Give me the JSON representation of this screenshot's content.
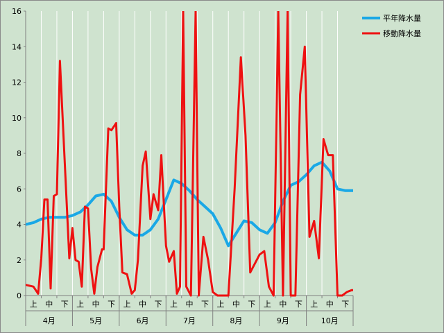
{
  "chart_data": {
    "type": "line",
    "title": "",
    "xlabel": "",
    "ylabel": "",
    "ylim": [
      0,
      16
    ],
    "yticks": [
      0,
      2,
      4,
      6,
      8,
      10,
      12,
      14,
      16
    ],
    "grid": "vertical",
    "legend_position": "top-right",
    "months": [
      "4月",
      "5月",
      "6月",
      "7月",
      "8月",
      "9月",
      "10月"
    ],
    "periods": [
      "上",
      "中",
      "下"
    ],
    "series": [
      {
        "name": "平年降水量",
        "color": "#1aa8e6",
        "x": [
          0.0,
          0.5,
          1.0,
          1.5,
          2.0,
          2.5,
          3.0,
          3.5,
          4.0,
          4.5,
          5.0,
          5.5,
          6.0,
          6.5,
          7.0,
          7.5,
          8.0,
          8.5,
          9.0,
          9.5,
          10.0,
          10.5,
          11.0,
          11.5,
          12.0,
          12.5,
          13.0,
          13.5,
          14.0,
          14.5,
          15.0,
          15.5,
          16.0,
          16.5,
          17.0,
          17.5,
          18.0,
          18.5,
          19.0,
          19.5,
          20.0,
          20.5,
          21.0
        ],
        "values": [
          4.0,
          4.1,
          4.3,
          4.4,
          4.4,
          4.4,
          4.5,
          4.7,
          5.1,
          5.6,
          5.7,
          5.3,
          4.4,
          3.7,
          3.4,
          3.4,
          3.7,
          4.3,
          5.4,
          6.5,
          6.3,
          5.9,
          5.4,
          5.0,
          4.6,
          3.8,
          2.8,
          3.5,
          4.2,
          4.1,
          3.7,
          3.5,
          4.1,
          5.3,
          6.2,
          6.4,
          6.8,
          7.3,
          7.5,
          7.0,
          6.0,
          5.9,
          5.9
        ]
      },
      {
        "name": "移動降水量",
        "color": "#ee1111",
        "x": [
          0.0,
          0.5,
          0.8,
          1.0,
          1.2,
          1.4,
          1.6,
          1.8,
          2.0,
          2.2,
          2.5,
          2.8,
          3.0,
          3.2,
          3.4,
          3.6,
          3.8,
          4.0,
          4.2,
          4.4,
          4.6,
          4.9,
          5.0,
          5.3,
          5.5,
          5.8,
          6.0,
          6.2,
          6.5,
          6.8,
          7.0,
          7.2,
          7.5,
          7.7,
          8.0,
          8.2,
          8.5,
          8.7,
          9.0,
          9.2,
          9.5,
          9.7,
          9.9,
          10.1,
          10.3,
          10.6,
          10.9,
          11.1,
          11.4,
          11.7,
          12.0,
          12.3,
          12.6,
          13.0,
          13.4,
          13.8,
          14.1,
          14.4,
          14.7,
          15.0,
          15.3,
          15.6,
          15.9,
          16.2,
          16.5,
          16.8,
          17.0,
          17.3,
          17.6,
          17.9,
          18.2,
          18.5,
          18.8,
          19.1,
          19.4,
          19.7,
          20.0,
          20.3,
          20.6,
          20.9,
          21.0
        ],
        "values": [
          0.6,
          0.5,
          0.1,
          2.1,
          5.4,
          5.4,
          0.4,
          5.6,
          5.7,
          13.2,
          7.6,
          2.1,
          3.8,
          2.0,
          1.9,
          0.5,
          5.0,
          4.9,
          1.5,
          0.1,
          1.6,
          2.6,
          2.6,
          9.4,
          9.3,
          9.7,
          5.0,
          1.3,
          1.2,
          0.1,
          0.3,
          2.0,
          7.3,
          8.1,
          4.3,
          5.7,
          4.8,
          7.9,
          2.8,
          1.9,
          2.5,
          0.1,
          0.5,
          16.0,
          0.5,
          0.0,
          16.0,
          0.0,
          3.3,
          2.0,
          0.2,
          0.0,
          0.0,
          0.0,
          6.0,
          13.4,
          9.0,
          1.3,
          1.8,
          2.3,
          2.5,
          0.5,
          0.0,
          16.0,
          0.0,
          16.0,
          0.0,
          0.0,
          11.3,
          14.0,
          3.3,
          4.2,
          2.1,
          8.8,
          7.9,
          7.9,
          0.0,
          0.0,
          0.2,
          0.3,
          0.3
        ]
      }
    ]
  }
}
